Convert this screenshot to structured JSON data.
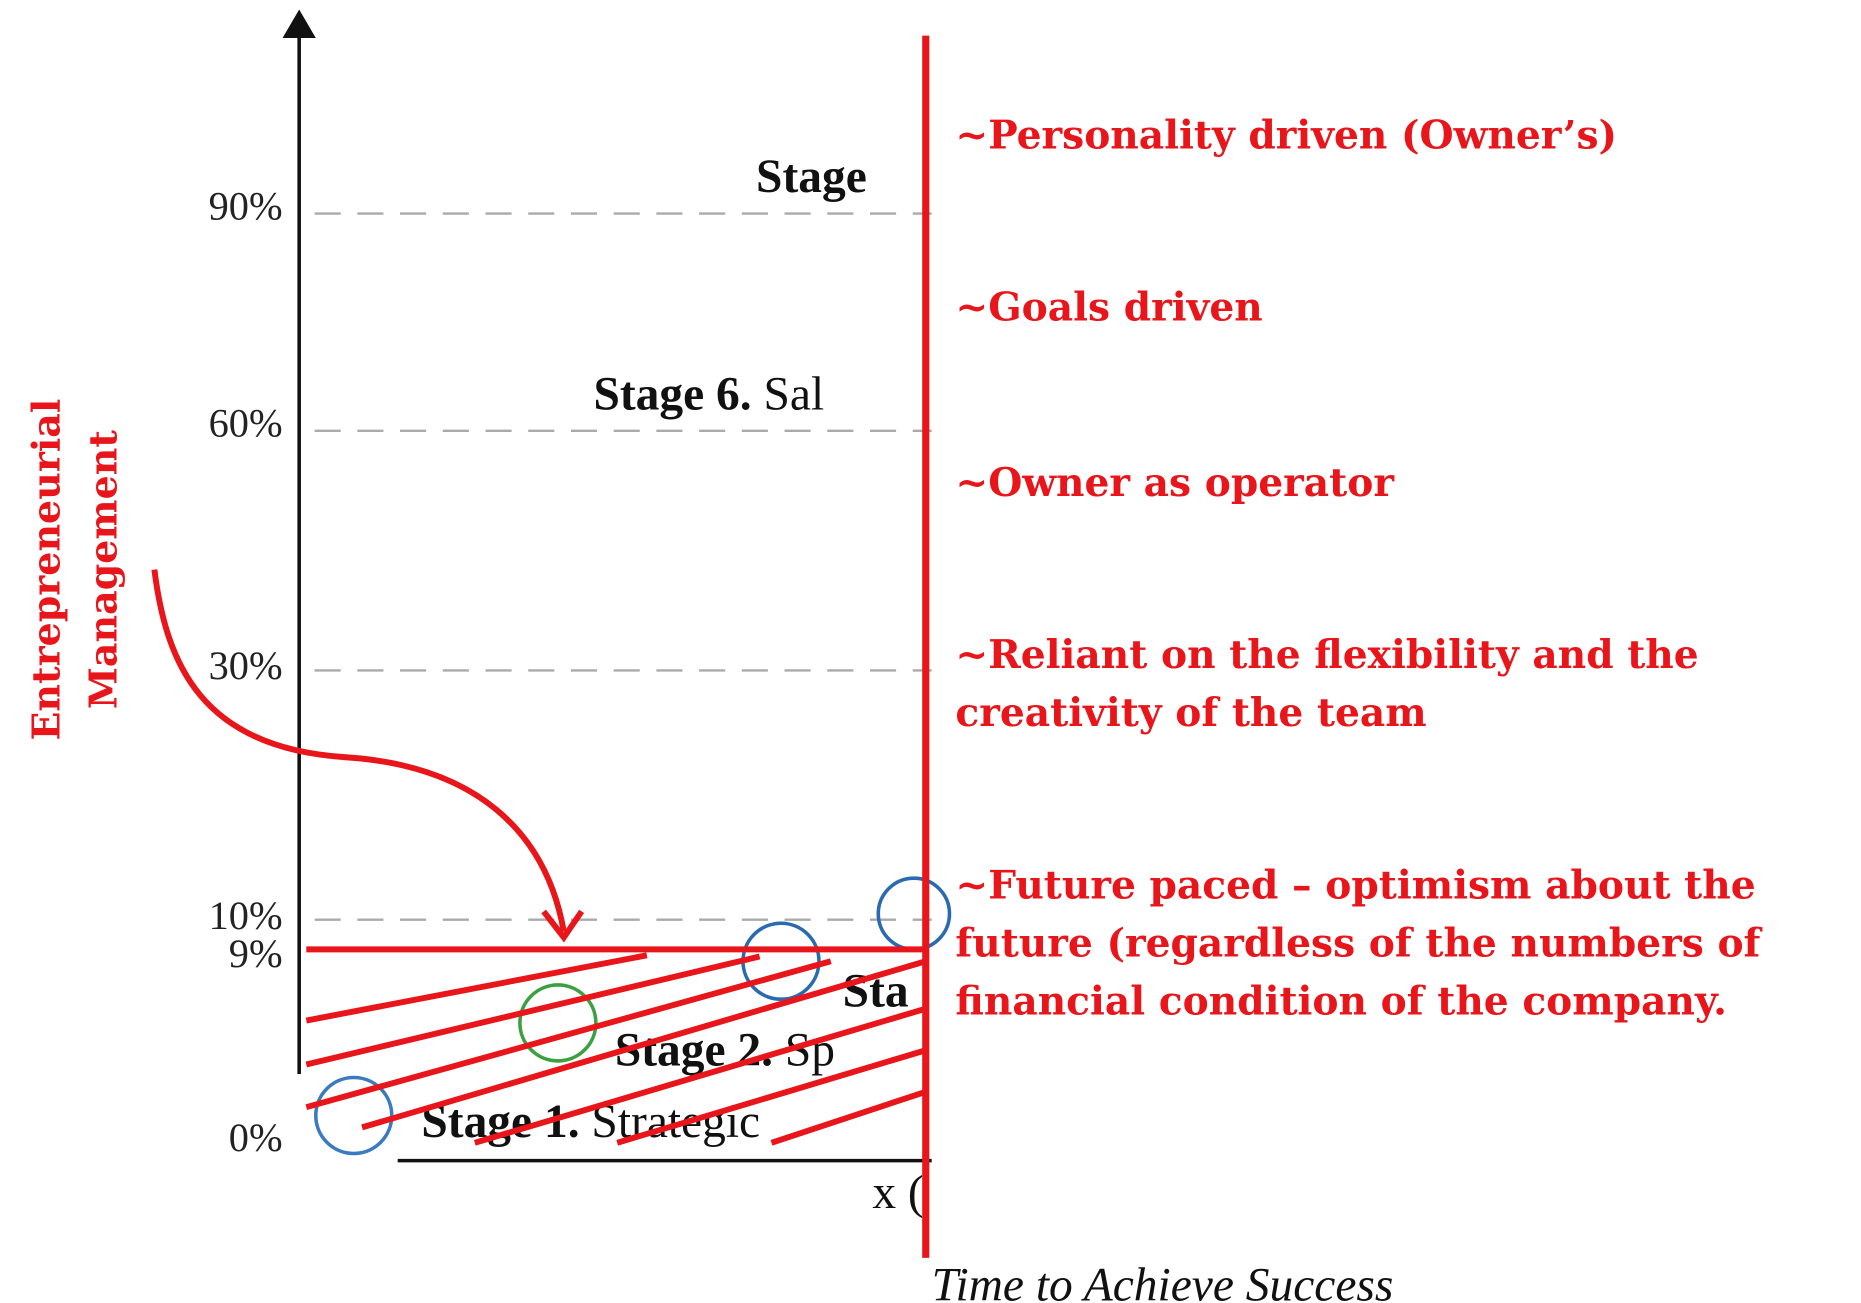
{
  "axis": {
    "ticks": [
      "90%",
      "60%",
      "30%",
      "10%",
      "9%",
      "0%"
    ],
    "x_fragment": "x (",
    "x_title": "Time to Achieve Success"
  },
  "stages": [
    {
      "bold": "Stage",
      "rest": ""
    },
    {
      "bold": "Stage 6.",
      "rest": "Sal"
    },
    {
      "bold": "Sta",
      "rest": ""
    },
    {
      "bold": "Stage 2.",
      "rest": "Sp"
    },
    {
      "bold": "Stage 1.",
      "rest": "Strategic"
    }
  ],
  "side_label": [
    "Entrepreneurial",
    "Management"
  ],
  "points": [
    [
      "~Personality driven (Owner’s)"
    ],
    [
      "~Goals driven"
    ],
    [
      "~Owner as operator"
    ],
    [
      "~Reliant on the flexibility and the",
      "creativity of the team"
    ],
    [
      "~Future paced – optimism about the",
      "future (regardless of the numbers of",
      "financial condition of the company."
    ]
  ]
}
